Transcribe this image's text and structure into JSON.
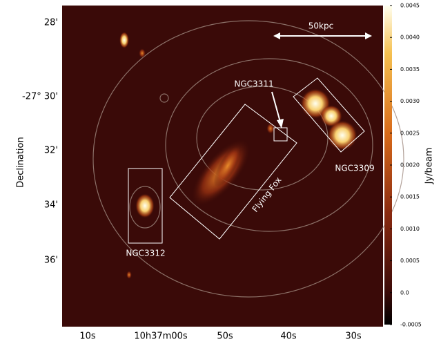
{
  "image": {
    "y_axis_label": "Declination",
    "dec_ticks": [
      "28'",
      "-27° 30'",
      "32'",
      "34'",
      "36'"
    ],
    "ra_ticks": [
      "10s",
      "10h37m00s",
      "50s",
      "40s",
      "30s"
    ],
    "annotations": {
      "scale": "50kpc",
      "ngc3311": "NGC3311",
      "ngc3309": "NGC3309",
      "flying_fox": "Flying Fox",
      "ngc3312": "NGC3312"
    }
  },
  "colorbar": {
    "label": "Jy/beam",
    "lim": [
      -0.0005,
      0.0045
    ],
    "ticks": [
      {
        "value": 0.0045,
        "label": "0.0045"
      },
      {
        "value": 0.004,
        "label": "0.0040"
      },
      {
        "value": 0.0035,
        "label": "0.0035"
      },
      {
        "value": 0.003,
        "label": "0.0030"
      },
      {
        "value": 0.0025,
        "label": "0.0025"
      },
      {
        "value": 0.002,
        "label": "0.0020"
      },
      {
        "value": 0.0015,
        "label": "0.0015"
      },
      {
        "value": 0.001,
        "label": "0.0010"
      },
      {
        "value": 0.0005,
        "label": "0.0005"
      },
      {
        "value": 0,
        "label": "0.0"
      },
      {
        "value": -0.0005,
        "label": "-0.0005"
      }
    ]
  }
}
